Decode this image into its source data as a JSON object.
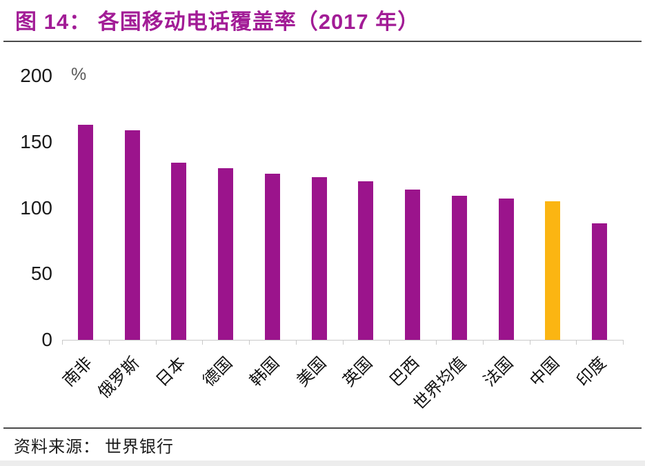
{
  "figure": {
    "title": "图 14：  各国移动电话覆盖率（2017 年）",
    "unit_label": "%",
    "source": "资料来源：  世界银行"
  },
  "colors": {
    "title_purple": "#A21C96",
    "bar_purple": "#9B148C",
    "bar_highlight_yellow": "#FBB512",
    "axis_gray": "#C9C9C9",
    "tick_text_dark": "#1A1A1A",
    "unit_text_gray": "#595959",
    "rule_dark": "#4A4A4A",
    "bottom_band_gray": "#EDEDED"
  },
  "chart_data": {
    "type": "bar",
    "title": "各国移动电话覆盖率（2017 年）",
    "xlabel": "",
    "ylabel": "%",
    "categories": [
      "南非",
      "俄罗斯",
      "日本",
      "德国",
      "韩国",
      "美国",
      "英国",
      "巴西",
      "世界均值",
      "法国",
      "中国",
      "印度"
    ],
    "values": [
      163,
      159,
      134,
      130,
      126,
      123,
      120,
      114,
      109,
      107,
      105,
      88
    ],
    "ylim": [
      0,
      200
    ],
    "yticks": [
      200,
      150,
      100,
      50,
      0
    ],
    "grid": false,
    "legend": false,
    "bar_color": "#9B148C",
    "highlight_category": "中国",
    "highlight_color": "#FBB512",
    "source": "世界银行"
  }
}
